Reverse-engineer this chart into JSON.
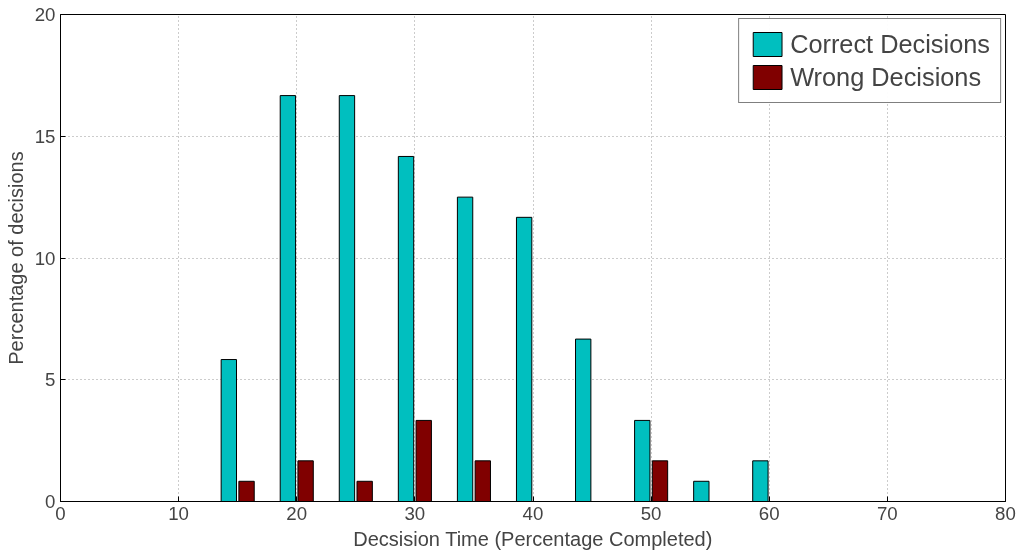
{
  "chart_data": {
    "type": "bar",
    "xlabel": "Decsision Time (Percentage Completed)",
    "ylabel": "Percentage of decisions",
    "x": [
      15,
      20,
      25,
      30,
      35,
      40,
      45,
      50,
      55,
      60
    ],
    "series": [
      {
        "name": "Correct Decisions",
        "color": "#00bfbf",
        "values": [
          5.83,
          16.67,
          16.67,
          14.17,
          12.5,
          11.67,
          6.67,
          3.33,
          0.83,
          1.67
        ]
      },
      {
        "name": "Wrong Decisions",
        "color": "#800000",
        "values": [
          0.83,
          1.67,
          0.83,
          3.33,
          1.67,
          null,
          null,
          1.67,
          null,
          null
        ]
      }
    ],
    "xlim": [
      0,
      80
    ],
    "xticks": [
      0,
      10,
      20,
      30,
      40,
      50,
      60,
      70,
      80
    ],
    "ylim": [
      0,
      20
    ],
    "yticks": [
      0,
      5,
      10,
      15,
      20
    ],
    "grid": true,
    "legend": "top right"
  }
}
